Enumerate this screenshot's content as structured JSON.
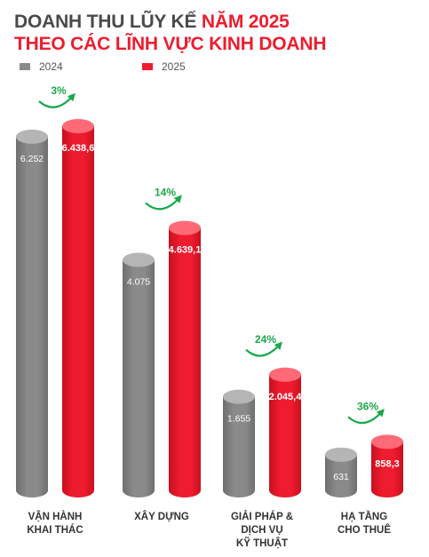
{
  "title": {
    "line1_part1": "DOANH THU LŨY KẾ ",
    "line1_part2": "NĂM 2025",
    "line2": "THEO CÁC LĨNH VỰC KINH DOANH"
  },
  "colors": {
    "series_2024": "#8a8a8a",
    "series_2025": "#ee1c2e",
    "growth": "#1aa84b"
  },
  "chart_data": {
    "type": "bar",
    "categories": [
      [
        "VẬN HÀNH",
        "KHAI THÁC"
      ],
      [
        "XÂY DỰNG"
      ],
      [
        "GIẢI PHÁP &",
        "DỊCH VỤ",
        "KỸ THUẬT"
      ],
      [
        "HẠ TẦNG",
        "CHO THUÊ"
      ]
    ],
    "series": [
      {
        "name": "2024",
        "values": [
          6252,
          4075,
          1655,
          631
        ],
        "labels": [
          "6.252",
          "4.075",
          "1.655",
          "631"
        ]
      },
      {
        "name": "2025",
        "values": [
          6438.6,
          4639.1,
          2045.4,
          858.3
        ],
        "labels": [
          "6.438,6",
          "4.639,1",
          "2.045,4",
          "858,3"
        ]
      }
    ],
    "growth": [
      "3%",
      "14%",
      "24%",
      "36%"
    ],
    "legend_position": "top-left",
    "grid": false
  }
}
